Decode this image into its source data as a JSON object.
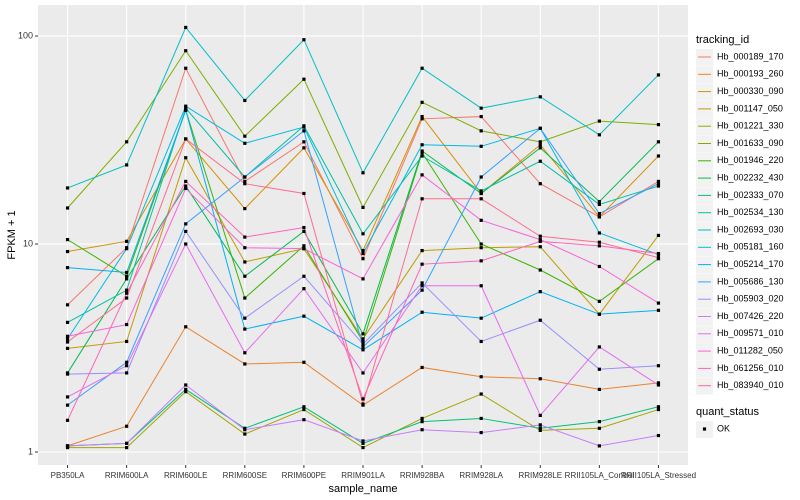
{
  "chart_data": {
    "type": "line",
    "x_label": "sample_name",
    "y_label": "FPKM + 1",
    "log_y": true,
    "grid": true,
    "legend_position": "right",
    "legend_title": "tracking_id",
    "point_legend": {
      "title": "quant_status",
      "labels": [
        "OK"
      ],
      "color": "#000000"
    },
    "categories": [
      "PB350LA",
      "RRIM600LA",
      "RRIM600LE",
      "RRIM600SE",
      "RRIM600PE",
      "RRIM901LA",
      "RRIM928BA",
      "RRIM928LA",
      "RRIM928LE",
      "RRII105LA_Control",
      "RRII105LA_Stressed"
    ],
    "ylim": [
      0.866,
      141
    ],
    "yticks": [
      1,
      10,
      100
    ],
    "series": [
      {
        "name": "Hb_000189_170",
        "color": "#F8766D",
        "values": [
          5.1,
          9.6,
          70,
          20,
          31,
          8.5,
          40,
          41,
          19.5,
          13.5,
          20
        ]
      },
      {
        "name": "Hb_000193_260",
        "color": "#EA8331",
        "values": [
          1.07,
          1.33,
          4.0,
          2.65,
          2.7,
          1.68,
          2.55,
          2.3,
          2.25,
          2.0,
          2.15
        ]
      },
      {
        "name": "Hb_000330_090",
        "color": "#D89000",
        "values": [
          9.2,
          10.3,
          32,
          14.8,
          29,
          9.3,
          41,
          17.5,
          30,
          13.5,
          26.5
        ]
      },
      {
        "name": "Hb_001147_050",
        "color": "#C09B00",
        "values": [
          3.15,
          3.4,
          26,
          8.2,
          9.5,
          3.5,
          9.3,
          9.6,
          9.7,
          4.6,
          11
        ]
      },
      {
        "name": "Hb_001221_330",
        "color": "#A3A500",
        "values": [
          1.05,
          1.05,
          1.95,
          1.22,
          1.6,
          1.05,
          1.45,
          1.9,
          1.27,
          1.3,
          1.6
        ]
      },
      {
        "name": "Hb_001633_090",
        "color": "#7CAE00",
        "values": [
          14.9,
          31,
          85,
          33,
          62,
          15,
          48,
          35,
          31,
          39,
          37.5
        ]
      },
      {
        "name": "Hb_001946_220",
        "color": "#39B600",
        "values": [
          10.5,
          7.0,
          44,
          5.5,
          9.8,
          3.4,
          27.5,
          10,
          7.5,
          5.3,
          8.5
        ]
      },
      {
        "name": "Hb_002232_430",
        "color": "#00BB4E",
        "values": [
          2.4,
          6.8,
          19,
          7.0,
          11.5,
          3.7,
          28,
          17.5,
          29,
          16,
          31
        ]
      },
      {
        "name": "Hb_002333_070",
        "color": "#00BF7D",
        "values": [
          1.07,
          1.1,
          2.0,
          1.3,
          1.65,
          1.1,
          1.4,
          1.45,
          1.3,
          1.4,
          1.65
        ]
      },
      {
        "name": "Hb_002534_130",
        "color": "#00C1A3",
        "values": [
          4.2,
          6.0,
          45,
          21,
          37,
          11.2,
          26.5,
          18,
          25,
          15.5,
          19
        ]
      },
      {
        "name": "Hb_002693_030",
        "color": "#00BFC4",
        "values": [
          18.6,
          24,
          110,
          49,
          96,
          22,
          70,
          45,
          51,
          33.5,
          65
        ]
      },
      {
        "name": "Hb_005181_160",
        "color": "#00BAE0",
        "values": [
          3.5,
          9.5,
          46,
          30.5,
          36.5,
          9.0,
          30,
          29.5,
          36,
          11.3,
          8.9
        ]
      },
      {
        "name": "Hb_005214_170",
        "color": "#00B0F6",
        "values": [
          7.7,
          7.3,
          44,
          3.9,
          4.5,
          3.1,
          4.7,
          4.4,
          5.9,
          4.6,
          4.8
        ]
      },
      {
        "name": "Hb_005686_130",
        "color": "#35A2FF",
        "values": [
          1.68,
          2.7,
          12.5,
          21,
          35,
          3.2,
          6.0,
          21,
          36,
          14,
          19.5
        ]
      },
      {
        "name": "Hb_005903_020",
        "color": "#9590FF",
        "values": [
          2.37,
          2.4,
          11.5,
          4.4,
          7.0,
          3.3,
          6.5,
          3.4,
          4.3,
          2.5,
          2.6
        ]
      },
      {
        "name": "Hb_007426_220",
        "color": "#C77CFF",
        "values": [
          1.07,
          1.1,
          2.1,
          1.28,
          1.43,
          1.13,
          1.28,
          1.24,
          1.35,
          1.07,
          1.2
        ]
      },
      {
        "name": "Hb_009571_010",
        "color": "#E76BF3",
        "values": [
          1.84,
          2.6,
          10,
          3.0,
          6.1,
          2.4,
          6.3,
          6.3,
          1.5,
          3.2,
          2.1
        ]
      },
      {
        "name": "Hb_011282_050",
        "color": "#FA62DB",
        "values": [
          3.6,
          4.1,
          18.5,
          9.6,
          9.5,
          6.8,
          21.5,
          13,
          10.5,
          7.8,
          5.2
        ]
      },
      {
        "name": "Hb_061256_010",
        "color": "#FF62BC",
        "values": [
          1.42,
          5.8,
          20,
          10.8,
          12,
          1.8,
          8.0,
          8.3,
          10.3,
          9.8,
          9
        ]
      },
      {
        "name": "Hb_083940_010",
        "color": "#FF6C91",
        "values": [
          3.38,
          5.5,
          32,
          19.5,
          17.5,
          1.7,
          16.5,
          16.5,
          10.9,
          10.2,
          8.6
        ]
      }
    ]
  }
}
